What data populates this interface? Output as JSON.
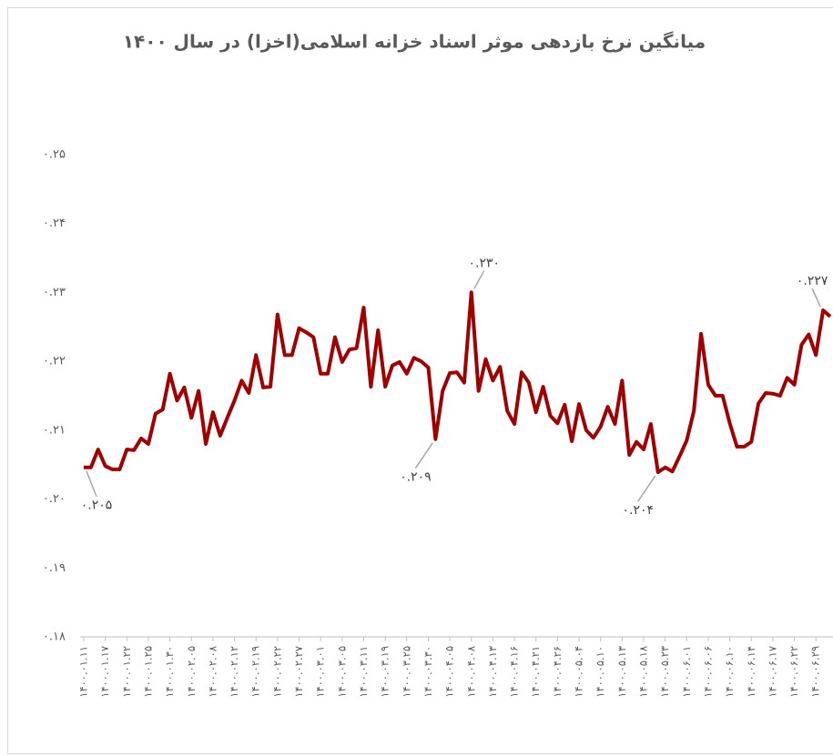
{
  "chart_data": {
    "type": "line",
    "title": "میانگین نرخ بازدهی موثر اسناد خزانه اسلامی(اخزا) در سال ۱۴۰۰",
    "categories": [
      "۱۴۰۰.۰۱.۱۱",
      null,
      null,
      "۱۴۰۰.۰۱.۱۷",
      null,
      null,
      "۱۴۰۰.۰۱.۲۲",
      null,
      null,
      "۱۴۰۰.۰۱.۲۵",
      null,
      null,
      "۱۴۰۰.۰۱.۳۰",
      null,
      null,
      "۱۴۰۰.۰۲.۰۵",
      null,
      null,
      "۱۴۰۰.۰۲.۰۸",
      null,
      null,
      "۱۴۰۰.۰۲.۱۲",
      null,
      null,
      "۱۴۰۰.۰۲.۱۹",
      null,
      null,
      "۱۴۰۰.۰۲.۲۲",
      null,
      null,
      "۱۴۰۰.۰۲.۲۷",
      null,
      null,
      "۱۴۰۰.۰۳.۰۱",
      null,
      null,
      "۱۴۰۰.۰۳.۰۵",
      null,
      null,
      "۱۴۰۰.۰۳.۱۱",
      null,
      null,
      "۱۴۰۰.۰۳.۱۹",
      null,
      null,
      "۱۴۰۰.۰۳.۲۵",
      null,
      null,
      "۱۴۰۰.۰۳.۳۰",
      null,
      null,
      "۱۴۰۰.۰۴.۰۵",
      null,
      null,
      "۱۴۰۰.۰۴.۰۸",
      null,
      null,
      "۱۴۰۰.۰۴.۱۳",
      null,
      null,
      "۱۴۰۰.۰۴.۱۶",
      null,
      null,
      "۱۴۰۰.۰۴.۲۱",
      null,
      null,
      "۱۴۰۰.۰۴.۲۶",
      null,
      null,
      "۱۴۰۰.۰۵.۰۴",
      null,
      null,
      "۱۴۰۰.۰۵.۱۰",
      null,
      null,
      "۱۴۰۰.۰۵.۱۳",
      null,
      null,
      "۱۴۰۰.۰۵.۱۸",
      null,
      null,
      "۱۴۰۰.۰۵.۲۳",
      null,
      null,
      "۱۴۰۰.۰۶.۰۱",
      null,
      null,
      "۱۴۰۰.۰۶.۰۶",
      null,
      null,
      "۱۴۰۰.۰۶.۱۰",
      null,
      null,
      "۱۴۰۰.۰۶.۱۴",
      null,
      null,
      "۱۴۰۰.۰۶.۱۷",
      null,
      null,
      "۱۴۰۰.۰۶.۲۲",
      null,
      null,
      "۱۴۰۰.۰۶.۲۹",
      null,
      null
    ],
    "series": [
      {
        "name": "نرخ بازدهی",
        "color": "#a00000",
        "values": [
          0.2046,
          0.2046,
          0.2072,
          0.2048,
          0.2043,
          0.2043,
          0.2072,
          0.2071,
          0.2088,
          0.208,
          0.2124,
          0.213,
          0.2182,
          0.2143,
          0.2162,
          0.2118,
          0.2157,
          0.208,
          0.2126,
          0.2092,
          0.2118,
          0.2143,
          0.2172,
          0.2154,
          0.2209,
          0.2162,
          0.2163,
          0.2268,
          0.2209,
          0.2209,
          0.2248,
          0.2242,
          0.2235,
          0.2182,
          0.2182,
          0.2235,
          0.2199,
          0.2217,
          0.2219,
          0.2278,
          0.2163,
          0.2245,
          0.2163,
          0.2194,
          0.2199,
          0.2182,
          0.2205,
          0.22,
          0.2191,
          0.2087,
          0.2157,
          0.2183,
          0.2184,
          0.2169,
          0.23,
          0.2157,
          0.2203,
          0.2172,
          0.2192,
          0.2128,
          0.2109,
          0.2184,
          0.2169,
          0.2126,
          0.2163,
          0.2121,
          0.211,
          0.2137,
          0.2084,
          0.2138,
          0.21,
          0.2089,
          0.2105,
          0.2134,
          0.2109,
          0.2172,
          0.2064,
          0.2083,
          0.2072,
          0.2109,
          0.2039,
          0.2046,
          0.204,
          0.2062,
          0.2085,
          0.2128,
          0.224,
          0.2166,
          0.215,
          0.215,
          0.211,
          0.2076,
          0.2076,
          0.2083,
          0.2139,
          0.2154,
          0.2153,
          0.215,
          0.2176,
          0.2166,
          0.2224,
          0.2239,
          0.2209,
          0.2274,
          0.2265
        ],
        "value_labels": [
          "۰.۲۰۵",
          null,
          null,
          null,
          null,
          null,
          null,
          null,
          null,
          null,
          null,
          null,
          null,
          null,
          null,
          null,
          null,
          null,
          null,
          null,
          null,
          null,
          null,
          null,
          null,
          null,
          null,
          null,
          null,
          null,
          null,
          null,
          null,
          null,
          null,
          null,
          null,
          null,
          null,
          null,
          null,
          null,
          null,
          null,
          null,
          null,
          null,
          null,
          null,
          "۰.۲۰۹",
          null,
          null,
          null,
          null,
          "۰.۲۳۰",
          null,
          null,
          null,
          null,
          null,
          null,
          null,
          null,
          null,
          null,
          null,
          null,
          null,
          null,
          null,
          null,
          null,
          null,
          null,
          null,
          null,
          null,
          null,
          null,
          null,
          "۰.۲۰۴",
          null,
          null,
          null,
          null,
          null,
          null,
          null,
          null,
          null,
          null,
          null,
          null,
          null,
          null,
          null,
          null,
          null,
          null,
          null,
          null,
          null,
          null,
          "۰.۲۲۷",
          null
        ]
      }
    ],
    "ylim": [
      0.18,
      0.25
    ],
    "yticks": [
      {
        "value": 0.18,
        "label": "۰.۱۸"
      },
      {
        "value": 0.19,
        "label": "۰.۱۹"
      },
      {
        "value": 0.2,
        "label": "۰.۲۰"
      },
      {
        "value": 0.21,
        "label": "۰.۲۱"
      },
      {
        "value": 0.22,
        "label": "۰.۲۲"
      },
      {
        "value": 0.23,
        "label": "۰.۲۳"
      },
      {
        "value": 0.24,
        "label": "۰.۲۴"
      },
      {
        "value": 0.25,
        "label": "۰.۲۵"
      }
    ],
    "grid": false
  }
}
